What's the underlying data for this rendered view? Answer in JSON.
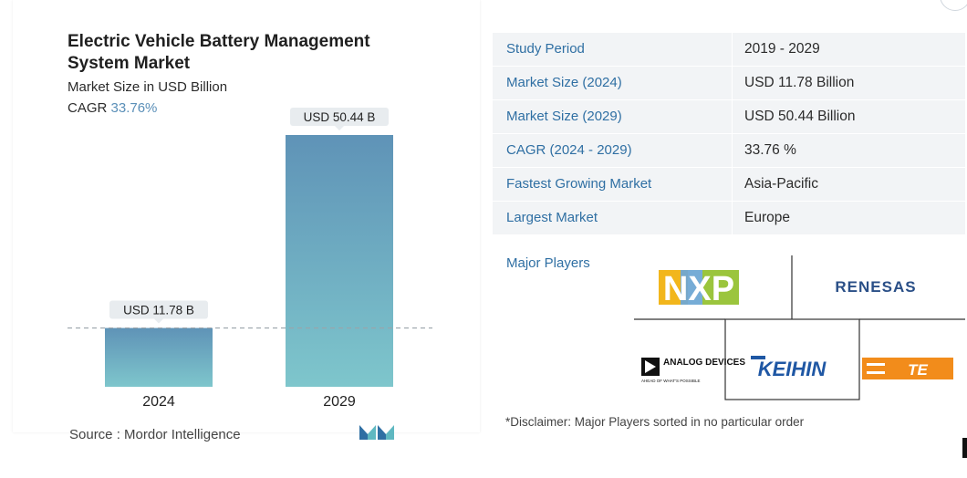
{
  "chart": {
    "title": "Electric Vehicle Battery Management System Market",
    "subtitle": "Market Size in USD Billion",
    "cagr_label": "CAGR",
    "cagr_value": "33.76%",
    "source": "Source :  Mordor Intelligence",
    "bar_color_top": "#5f93b7",
    "bar_color_bottom": "#7ec6cc"
  },
  "chart_data": {
    "type": "bar",
    "categories": [
      "2024",
      "2029"
    ],
    "values": [
      11.78,
      50.44
    ],
    "data_labels": [
      "USD 11.78 B",
      "USD 50.44 B"
    ],
    "title": "Electric Vehicle Battery Management System Market",
    "subtitle": "Market Size in USD Billion",
    "ylim": [
      0,
      50.44
    ],
    "grid": false,
    "reference_line": 11.78
  },
  "stats": [
    {
      "label": "Study Period",
      "value": "2019 - 2029"
    },
    {
      "label": "Market Size (2024)",
      "value": "USD 11.78 Billion"
    },
    {
      "label": "Market Size (2029)",
      "value": "USD 50.44 Billion"
    },
    {
      "label": "CAGR (2024 - 2029)",
      "value": "33.76 %"
    },
    {
      "label": "Fastest Growing Market",
      "value": "Asia-Pacific"
    },
    {
      "label": "Largest Market",
      "value": "Europe"
    }
  ],
  "players": {
    "title": "Major Players",
    "logos": [
      "NXP",
      "RENESAS",
      "ANALOG DEVICES",
      "AHEAD OF WHAT'S POSSIBLE",
      "KEIHIN",
      "TE"
    ],
    "disclaimer": "*Disclaimer: Major Players sorted in no particular order"
  }
}
